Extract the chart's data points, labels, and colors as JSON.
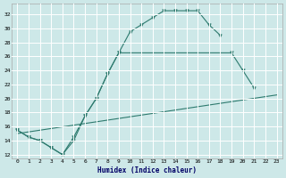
{
  "xlabel": "Humidex (Indice chaleur)",
  "bg_color": "#cde8e8",
  "line_color": "#2d7a6e",
  "grid_color": "#ffffff",
  "xlim": [
    -0.5,
    23.5
  ],
  "ylim": [
    11.5,
    33.5
  ],
  "xticks": [
    0,
    1,
    2,
    3,
    4,
    5,
    6,
    7,
    8,
    9,
    10,
    11,
    12,
    13,
    14,
    15,
    16,
    17,
    18,
    19,
    20,
    21,
    22,
    23
  ],
  "yticks": [
    12,
    14,
    16,
    18,
    20,
    22,
    24,
    26,
    28,
    30,
    32
  ],
  "series": [
    {
      "x": [
        0,
        1,
        2,
        3,
        4,
        5,
        6,
        7,
        8,
        9,
        10,
        11,
        12,
        13,
        14,
        15,
        16,
        17,
        18
      ],
      "y": [
        15.5,
        14.5,
        14.0,
        13.0,
        12.0,
        14.5,
        17.5,
        20.0,
        23.5,
        26.5,
        29.5,
        30.5,
        31.5,
        32.5,
        32.5,
        32.5,
        32.5,
        30.5,
        29.0
      ]
    },
    {
      "x": [
        0,
        1,
        2,
        3,
        4,
        5,
        6,
        7,
        8,
        9,
        19,
        20,
        21
      ],
      "y": [
        15.5,
        14.5,
        14.0,
        13.0,
        12.0,
        14.0,
        17.5,
        20.0,
        23.5,
        26.5,
        26.5,
        24.0,
        21.5
      ]
    },
    {
      "x": [
        0,
        23
      ],
      "y": [
        15.0,
        20.5
      ]
    }
  ]
}
